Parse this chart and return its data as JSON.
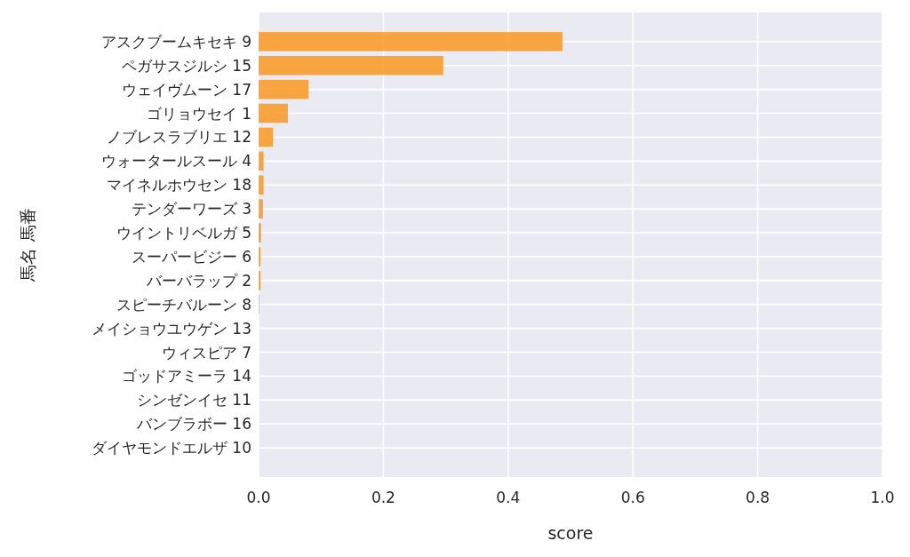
{
  "chart_data": {
    "type": "bar",
    "orientation": "horizontal",
    "xlabel": "score",
    "ylabel": "馬名 馬番",
    "categories": [
      "アスクブームキセキ 9",
      "ペガサスジルシ 15",
      "ウェイヴムーン 17",
      "ゴリョウセイ 1",
      "ノブレスラブリエ 12",
      "ウォータールスール 4",
      "マイネルホウセン 18",
      "テンダーワーズ 3",
      "ウイントリベルガ 5",
      "スーパービジー 6",
      "バーバラップ 2",
      "スピーチバルーン 8",
      "メイショウユウゲン 13",
      "ウィスピア 7",
      "ゴッドアミーラ 14",
      "シンゼンイセ 11",
      "バンブラボー 16",
      "ダイヤモンドエルザ 10"
    ],
    "values": [
      0.487,
      0.296,
      0.08,
      0.047,
      0.023,
      0.008,
      0.008,
      0.007,
      0.004,
      0.003,
      0.003,
      0.001,
      0,
      0,
      0,
      0,
      0,
      0
    ],
    "color": "#fa9c2e",
    "xlim": [
      0,
      1
    ],
    "xticks": [
      {
        "value": 0,
        "label": "0.0"
      },
      {
        "value": 0.2,
        "label": "0.2"
      },
      {
        "value": 0.4,
        "label": "0.4"
      },
      {
        "value": 0.6,
        "label": "0.6"
      },
      {
        "value": 0.8,
        "label": "0.8"
      },
      {
        "value": 1,
        "label": "1.0"
      }
    ],
    "grid": true
  }
}
